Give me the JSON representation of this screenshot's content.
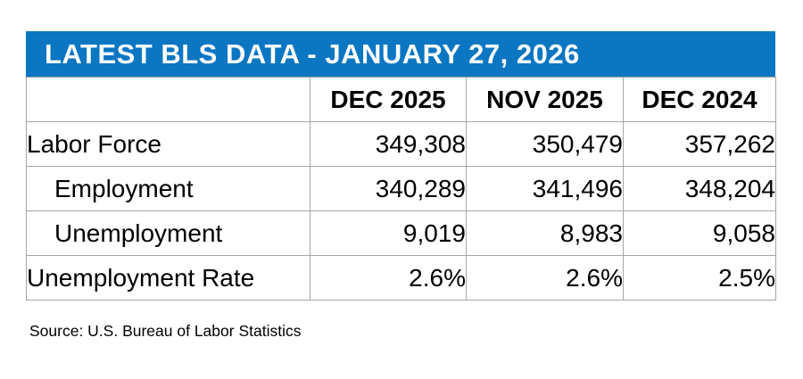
{
  "title": "LATEST BLS DATA - JANUARY 27, 2026",
  "source": "Source: U.S. Bureau of Labor Statistics",
  "colors": {
    "accent_blue": "#0b76c2",
    "grid_gray": "#a6a6a6",
    "title_text": "#ffffff",
    "body_text": "#000000"
  },
  "chart_data": {
    "type": "table",
    "title": "LATEST BLS DATA - JANUARY 27, 2026",
    "columns": [
      "",
      "DEC 2025",
      "NOV 2025",
      "DEC 2024"
    ],
    "rows": [
      {
        "label": "Labor Force",
        "indent": false,
        "values": [
          "349,308",
          "350,479",
          "357,262"
        ]
      },
      {
        "label": "Employment",
        "indent": true,
        "values": [
          "340,289",
          "341,496",
          "348,204"
        ]
      },
      {
        "label": "Unemployment",
        "indent": true,
        "values": [
          "9,019",
          "8,983",
          "9,058"
        ]
      },
      {
        "label": "Unemployment Rate",
        "indent": false,
        "values": [
          "2.6%",
          "2.6%",
          "2.5%"
        ]
      }
    ],
    "layout": {
      "header_align": "center",
      "value_align": "right",
      "grid": true
    }
  }
}
